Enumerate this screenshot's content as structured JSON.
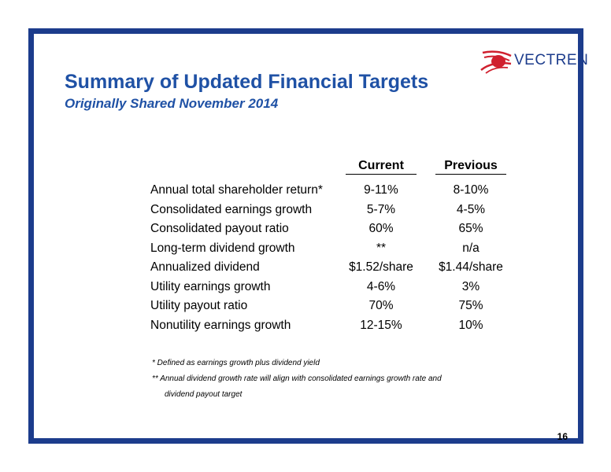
{
  "brand": {
    "logo_text": "VECTREN",
    "logo_icon": "vectren-swoosh-logo-icon",
    "accent_color": "#1c3c8c",
    "title_color": "#1f51a5",
    "logo_red": "#d0202e"
  },
  "header": {
    "title": "Summary of Updated Financial Targets",
    "subtitle": "Originally Shared November 2014"
  },
  "table": {
    "columns": {
      "current": "Current",
      "previous": "Previous"
    },
    "rows": [
      {
        "label": "Annual total shareholder return*",
        "current": "9-11%",
        "previous": "8-10%"
      },
      {
        "label": "Consolidated earnings growth",
        "current": "5-7%",
        "previous": "4-5%"
      },
      {
        "label": "Consolidated payout ratio",
        "current": "60%",
        "previous": "65%"
      },
      {
        "label": "Long-term dividend growth",
        "current": "**",
        "previous": "n/a"
      },
      {
        "label": "Annualized dividend",
        "current": "$1.52/share",
        "previous": "$1.44/share"
      },
      {
        "label": "Utility earnings growth",
        "current": "4-6%",
        "previous": "3%"
      },
      {
        "label": "Utility payout ratio",
        "current": "70%",
        "previous": "75%"
      },
      {
        "label": "Nonutility earnings growth",
        "current": "12-15%",
        "previous": "10%"
      }
    ]
  },
  "footnotes": {
    "note1": "*  Defined as earnings growth plus dividend yield",
    "note2": "** Annual dividend growth rate will align with consolidated earnings growth rate and",
    "note2_cont": "dividend payout target"
  },
  "footer": {
    "page_number": "16"
  }
}
